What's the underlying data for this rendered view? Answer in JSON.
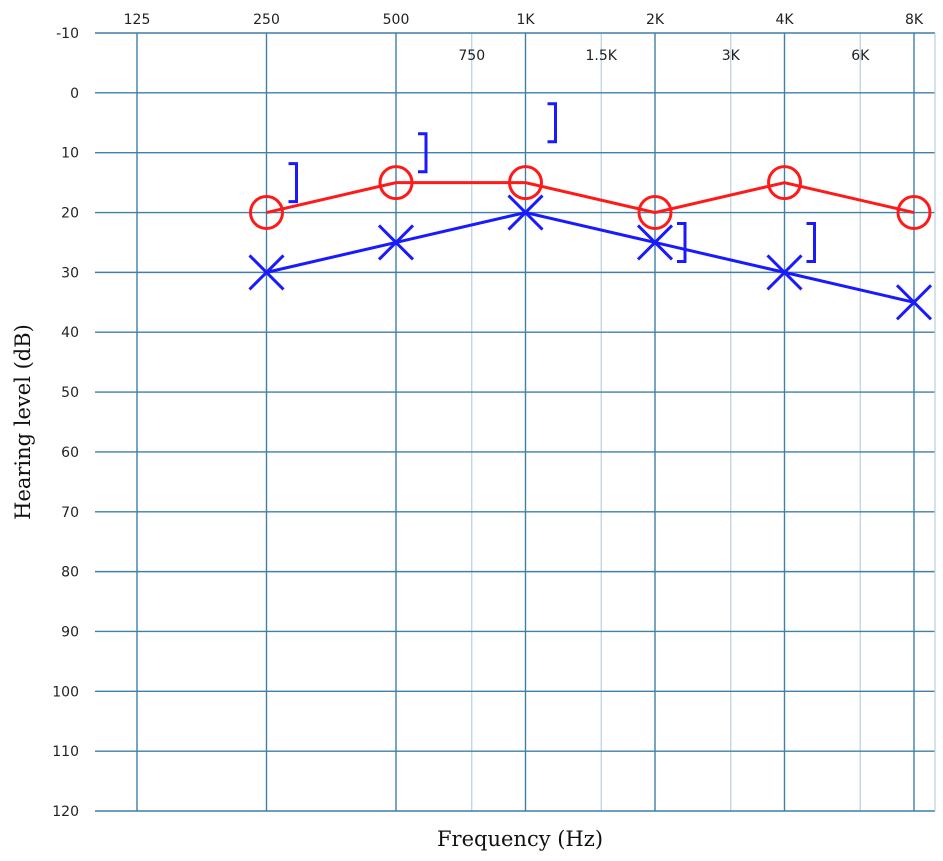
{
  "chart_data": {
    "type": "line",
    "title": "",
    "xlabel": "Frequency (Hz)",
    "ylabel": "Hearing level (dB)",
    "x_scale": "log2",
    "y_inverted": true,
    "ylim": [
      -10,
      120
    ],
    "y_ticks": [
      -10,
      0,
      10,
      20,
      30,
      40,
      50,
      60,
      70,
      80,
      90,
      100,
      110,
      120
    ],
    "x_major_ticks": [
      {
        "hz": 125,
        "label": "125"
      },
      {
        "hz": 250,
        "label": "250"
      },
      {
        "hz": 500,
        "label": "500"
      },
      {
        "hz": 1000,
        "label": "1K"
      },
      {
        "hz": 2000,
        "label": "2K"
      },
      {
        "hz": 4000,
        "label": "4K"
      },
      {
        "hz": 8000,
        "label": "8K"
      }
    ],
    "x_minor_ticks": [
      {
        "hz": 750,
        "label": "750"
      },
      {
        "hz": 1500,
        "label": "1.5K"
      },
      {
        "hz": 3000,
        "label": "3K"
      },
      {
        "hz": 6000,
        "label": "6K"
      }
    ],
    "grid": true,
    "series": [
      {
        "marker": "circle",
        "color": "#ff1a1a",
        "points": [
          {
            "hz": 250,
            "db": 20
          },
          {
            "hz": 500,
            "db": 15
          },
          {
            "hz": 1000,
            "db": 15
          },
          {
            "hz": 2000,
            "db": 20
          },
          {
            "hz": 4000,
            "db": 15
          },
          {
            "hz": 8000,
            "db": 20
          }
        ]
      },
      {
        "marker": "cross",
        "color": "#1a1aff",
        "points": [
          {
            "hz": 250,
            "db": 30
          },
          {
            "hz": 500,
            "db": 25
          },
          {
            "hz": 1000,
            "db": 20
          },
          {
            "hz": 2000,
            "db": 25
          },
          {
            "hz": 4000,
            "db": 30
          },
          {
            "hz": 8000,
            "db": 35
          }
        ]
      },
      {
        "marker": "bracket-right",
        "color": "#1a1aff",
        "connected": false,
        "points": [
          {
            "hz": 250,
            "db": 15
          },
          {
            "hz": 500,
            "db": 10
          },
          {
            "hz": 1000,
            "db": 5
          },
          {
            "hz": 2000,
            "db": 25
          },
          {
            "hz": 4000,
            "db": 25
          }
        ]
      }
    ],
    "colors": {
      "grid_major": "#3f7fa8",
      "grid_minor": "#b8cfe0",
      "background": "#ffffff"
    }
  }
}
